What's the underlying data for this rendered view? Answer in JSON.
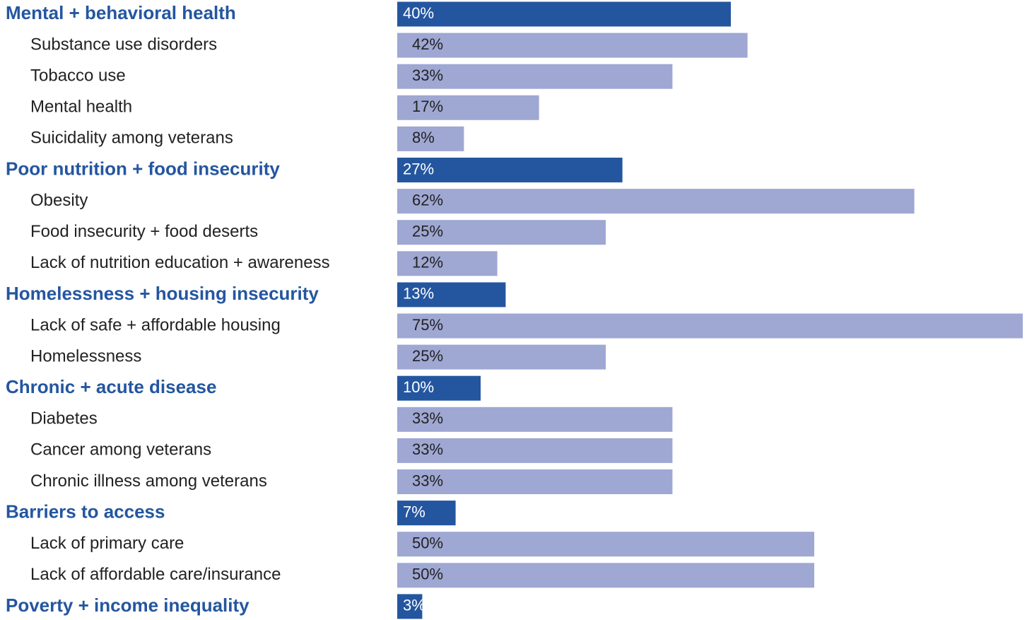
{
  "chart_data": {
    "type": "bar",
    "orientation": "horizontal",
    "categories": [
      "Mental + behavioral health",
      "Substance use disorders",
      "Tobacco use",
      "Mental health",
      "Suicidality among veterans",
      "Poor nutrition + food insecurity",
      "Obesity",
      "Food insecurity + food deserts",
      "Lack of nutrition education + awareness",
      "Homelessness + housing insecurity",
      "Lack of safe + affordable housing",
      "Homelessness",
      "Chronic + acute disease",
      "Diabetes",
      "Cancer among veterans",
      "Chronic illness among veterans",
      "Barriers to access",
      "Lack of primary care",
      "Lack of affordable care/insurance",
      "Poverty + income inequality"
    ],
    "levels": [
      0,
      1,
      1,
      1,
      1,
      0,
      1,
      1,
      1,
      0,
      1,
      1,
      0,
      1,
      1,
      1,
      0,
      1,
      1,
      0
    ],
    "values": [
      40,
      42,
      33,
      17,
      8,
      27,
      62,
      25,
      12,
      13,
      75,
      25,
      10,
      33,
      33,
      33,
      7,
      50,
      50,
      3
    ],
    "value_labels": [
      "40%",
      "42%",
      "33%",
      "17%",
      "8%",
      "27%",
      "62%",
      "25%",
      "12%",
      "13%",
      "75%",
      "25%",
      "10%",
      "33%",
      "33%",
      "33%",
      "7%",
      "50%",
      "50%",
      "3%"
    ],
    "colors": [
      "#2456a0",
      "#9fa7d3"
    ],
    "xlim": [
      0,
      75
    ]
  }
}
